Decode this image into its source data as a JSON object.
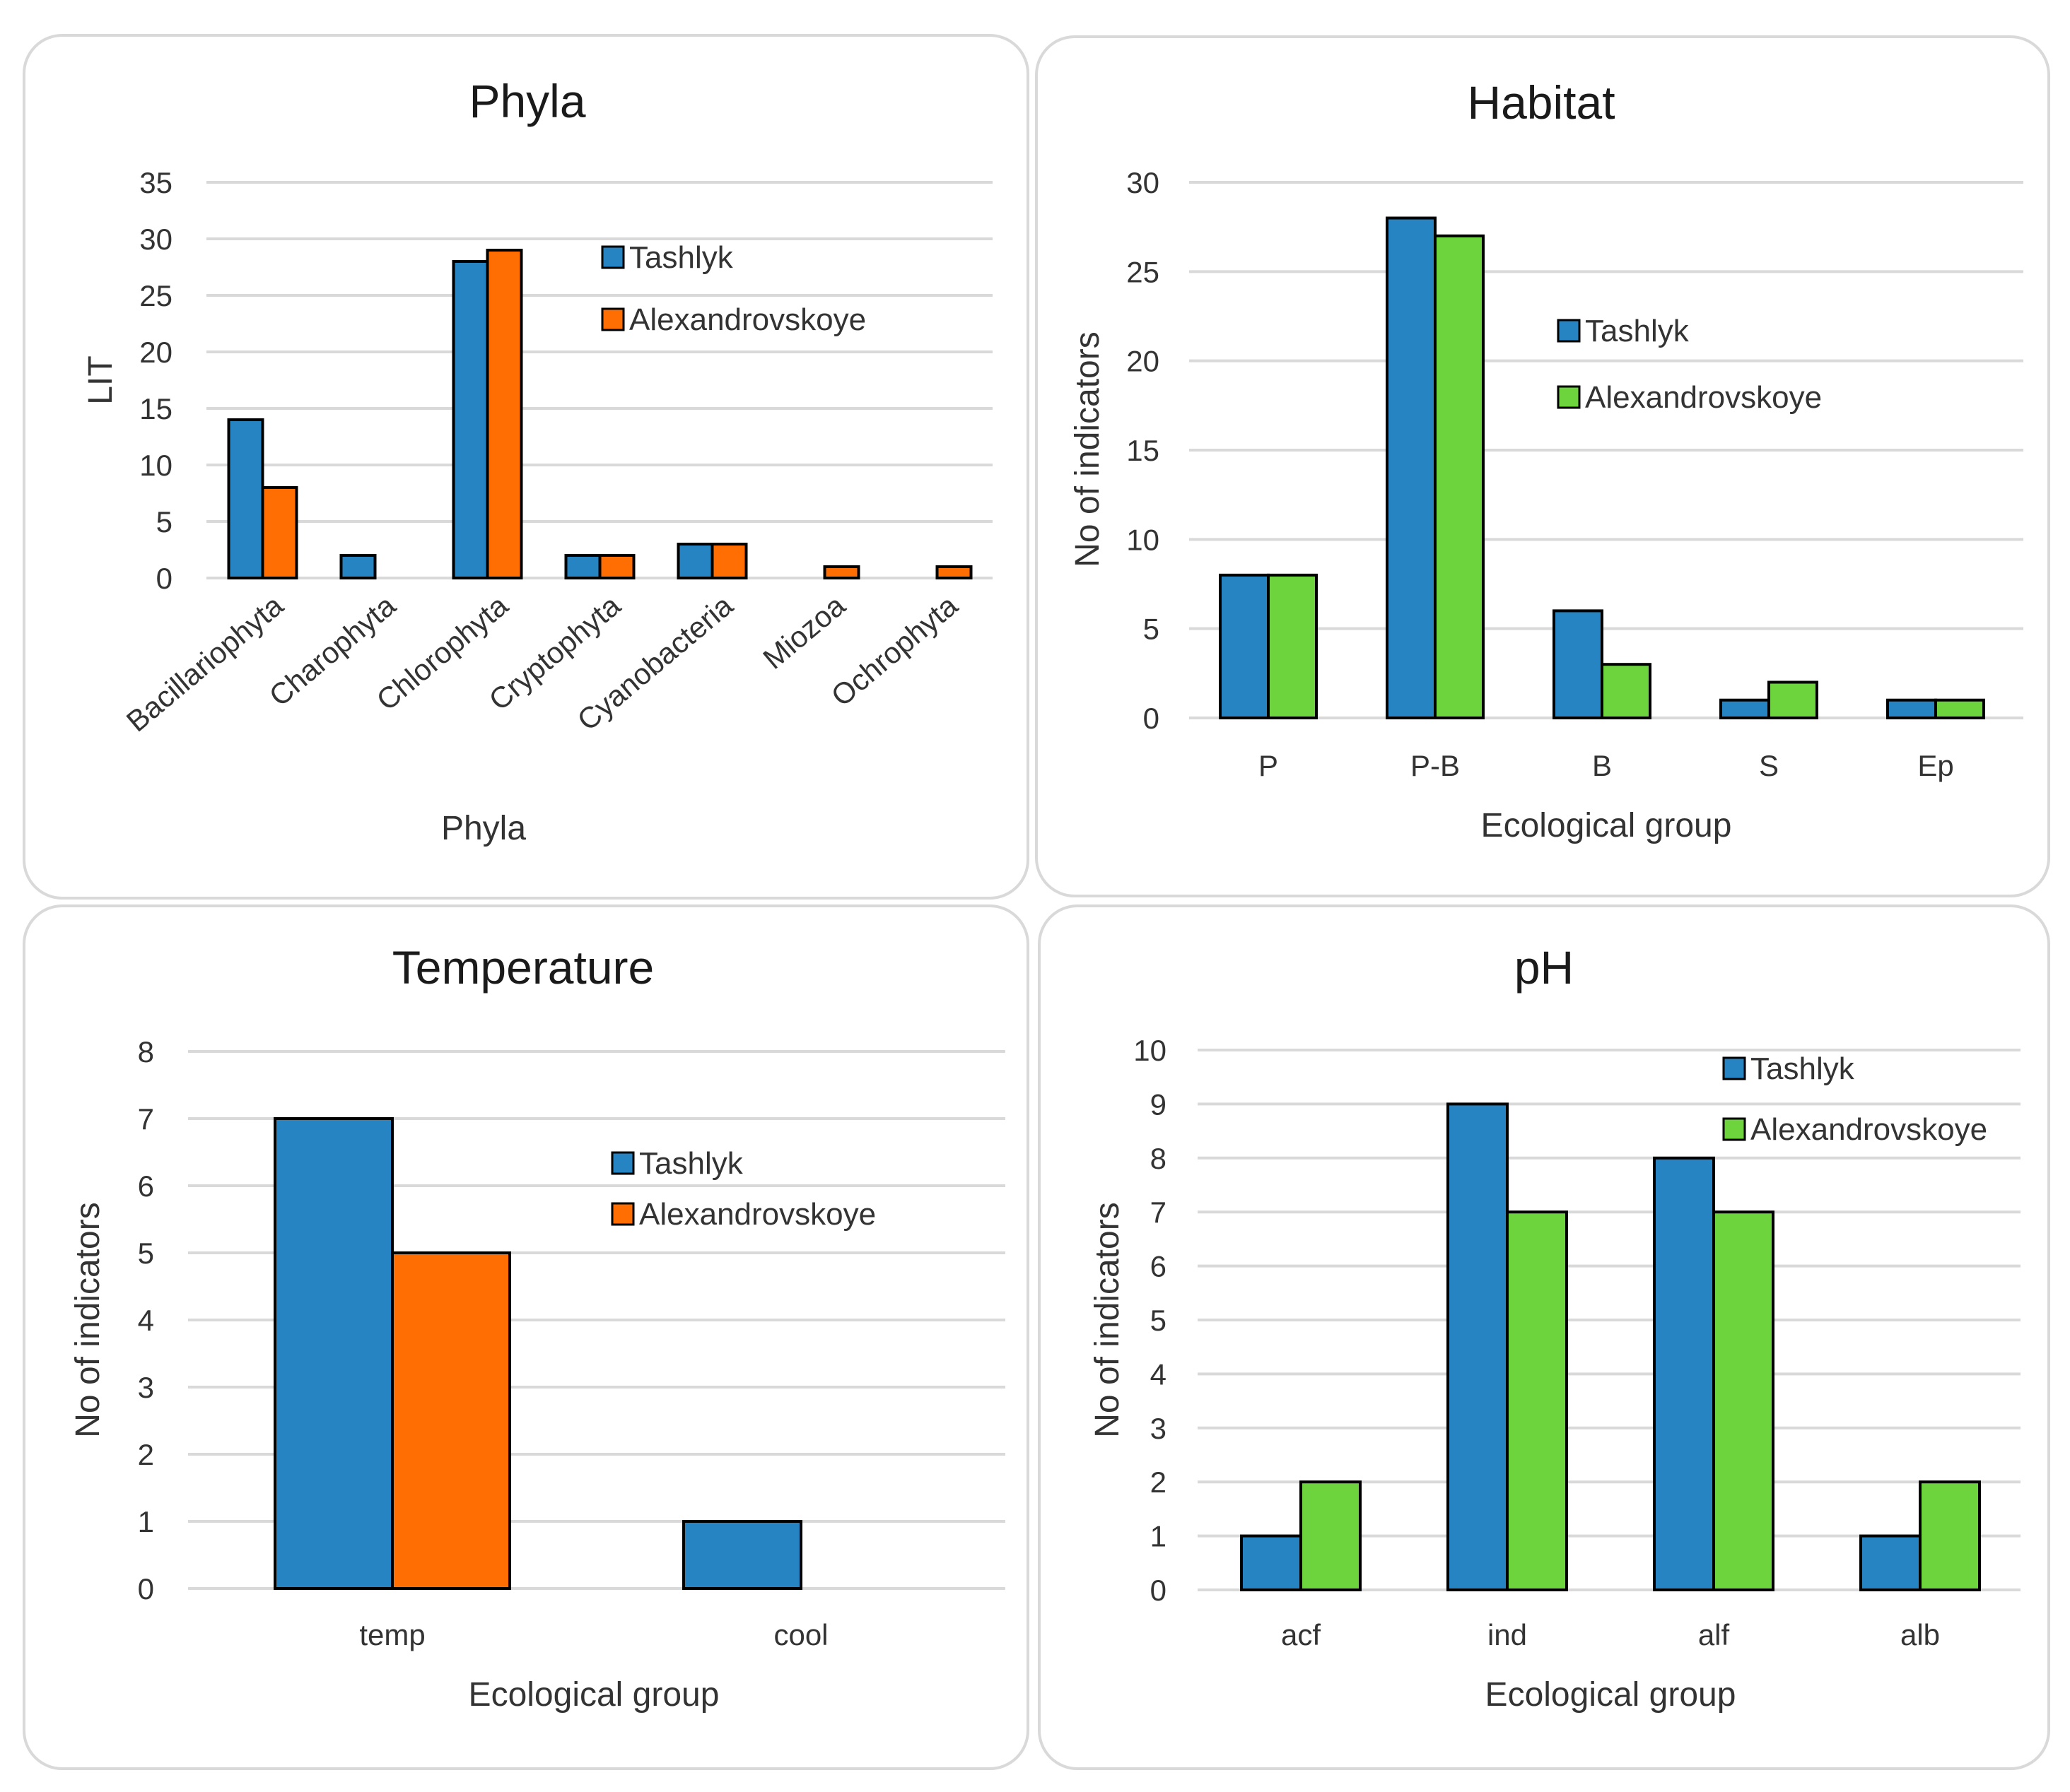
{
  "colors": {
    "tashlyk": "#2784c3",
    "alexandrovskoye_orange": "#ff6e02",
    "alexandrovskoye_green": "#6dd43d"
  },
  "chart_data": [
    {
      "id": "phyla",
      "type": "bar",
      "title": "Phyla",
      "xlabel": "Phyla",
      "ylabel": "LIT",
      "ylim": [
        0,
        35
      ],
      "yticks": [
        "0",
        "5",
        "10",
        "15",
        "20",
        "25",
        "30",
        "35"
      ],
      "categories": [
        "Bacillariophyta",
        "Charophyta",
        "Chlorophyta",
        "Cryptophyta",
        "Cyanobacteria",
        "Miozoa",
        "Ochrophyta"
      ],
      "series": [
        {
          "name": "Tashlyk",
          "color": "#2784c3",
          "values": [
            14,
            2,
            28,
            2,
            3,
            0,
            0
          ]
        },
        {
          "name": "Alexandrovskoye",
          "color": "#ff6e02",
          "values": [
            8,
            0,
            29,
            2,
            3,
            1,
            1
          ]
        }
      ],
      "grid": true,
      "legend": "top-right"
    },
    {
      "id": "habitat",
      "type": "bar",
      "title": "Habitat",
      "xlabel": "Ecological group",
      "ylabel": "No of indicators",
      "ylim": [
        0,
        30
      ],
      "yticks": [
        "0",
        "5",
        "10",
        "15",
        "20",
        "25",
        "30"
      ],
      "categories": [
        "P",
        "P-B",
        "B",
        "S",
        "Ep"
      ],
      "series": [
        {
          "name": "Tashlyk",
          "color": "#2784c3",
          "values": [
            8,
            28,
            6,
            1,
            1
          ]
        },
        {
          "name": "Alexandrovskoye",
          "color": "#6dd43d",
          "values": [
            8,
            27,
            3,
            2,
            1
          ]
        }
      ],
      "grid": true,
      "legend": "top-right"
    },
    {
      "id": "temp",
      "type": "bar",
      "title": "Temperature",
      "xlabel": "Ecological group",
      "ylabel": "No of indicators",
      "ylim": [
        0,
        8
      ],
      "yticks": [
        "0",
        "1",
        "2",
        "3",
        "4",
        "5",
        "6",
        "7",
        "8"
      ],
      "categories": [
        "temp",
        "cool"
      ],
      "series": [
        {
          "name": "Tashlyk",
          "color": "#2784c3",
          "values": [
            7,
            1
          ]
        },
        {
          "name": "Alexandrovskoye",
          "color": "#ff6e02",
          "values": [
            5,
            0
          ]
        }
      ],
      "grid": true,
      "legend": "top-right"
    },
    {
      "id": "ph",
      "type": "bar",
      "title": "pH",
      "xlabel": "Ecological group",
      "ylabel": "No of indicators",
      "ylim": [
        0,
        10
      ],
      "yticks": [
        "0",
        "1",
        "2",
        "3",
        "4",
        "5",
        "6",
        "7",
        "8",
        "9",
        "10"
      ],
      "categories": [
        "acf",
        "ind",
        "alf",
        "alb"
      ],
      "series": [
        {
          "name": "Tashlyk",
          "color": "#2784c3",
          "values": [
            1,
            9,
            8,
            1
          ]
        },
        {
          "name": "Alexandrovskoye",
          "color": "#6dd43d",
          "values": [
            2,
            7,
            7,
            2
          ]
        }
      ],
      "grid": true,
      "legend": "top-right"
    }
  ]
}
